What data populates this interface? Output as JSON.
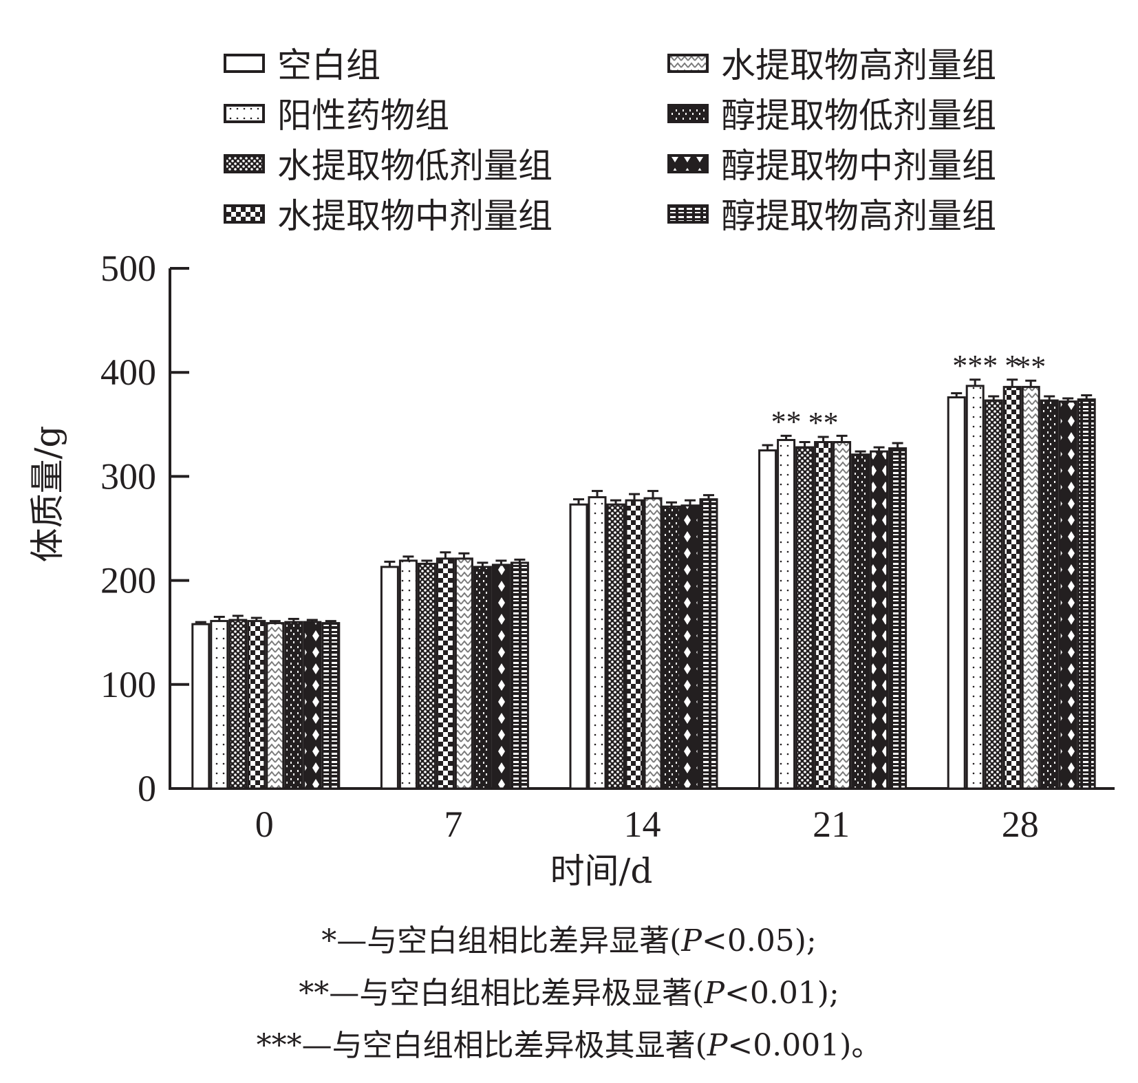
{
  "chart_data": {
    "type": "bar",
    "categories": [
      "0",
      "7",
      "14",
      "21",
      "28"
    ],
    "xlabel": "时间/d",
    "ylabel": "体质量/g",
    "ylim": [
      0,
      500
    ],
    "yticks": [
      "0",
      "100",
      "200",
      "300",
      "400",
      "500"
    ],
    "grid": false,
    "legend_position": "top",
    "series": [
      {
        "name": "空白组",
        "values": [
          158,
          213,
          273,
          325,
          376
        ],
        "errors": [
          2,
          5,
          5,
          5,
          4
        ]
      },
      {
        "name": "阳性药物组",
        "values": [
          161,
          219,
          280,
          335,
          387
        ],
        "errors": [
          4,
          4,
          6,
          4,
          6
        ]
      },
      {
        "name": "水提取物低剂量组",
        "values": [
          162,
          216,
          273,
          328,
          373
        ],
        "errors": [
          4,
          3,
          4,
          5,
          4
        ]
      },
      {
        "name": "水提取物中剂量组",
        "values": [
          161,
          221,
          277,
          333,
          386
        ],
        "errors": [
          3,
          6,
          6,
          5,
          7
        ]
      },
      {
        "name": "水提取物高剂量组",
        "values": [
          159,
          221,
          279,
          333,
          386
        ],
        "errors": [
          2,
          5,
          7,
          6,
          6
        ]
      },
      {
        "name": "醇提取物低剂量组",
        "values": [
          160,
          213,
          271,
          321,
          373
        ],
        "errors": [
          3,
          4,
          4,
          3,
          4
        ]
      },
      {
        "name": "醇提取物中剂量组",
        "values": [
          160,
          215,
          272,
          324,
          372
        ],
        "errors": [
          2,
          4,
          5,
          4,
          3
        ]
      },
      {
        "name": "醇提取物高剂量组",
        "values": [
          159,
          217,
          278,
          327,
          374
        ],
        "errors": [
          2,
          3,
          4,
          5,
          4
        ]
      }
    ],
    "significance": [
      {
        "category": "21",
        "series": "阳性药物组",
        "label": "**"
      },
      {
        "category": "21",
        "series": "水提取物中剂量组",
        "label": "**"
      },
      {
        "category": "28",
        "series": "阳性药物组",
        "label": "***"
      },
      {
        "category": "28",
        "series": "水提取物中剂量组",
        "label": "*"
      },
      {
        "category": "28",
        "series": "水提取物高剂量组",
        "label": "**"
      }
    ]
  },
  "notes": [
    {
      "stars": "*",
      "text": "—与空白组相比差异显著(",
      "p": "P",
      "value": "<0.05);"
    },
    {
      "stars": "**",
      "text": "—与空白组相比差异极显著(",
      "p": "P",
      "value": "<0.01);"
    },
    {
      "stars": "***",
      "text": "—与空白组相比差异极其显著(",
      "p": "P",
      "value": "<0.001)。"
    }
  ]
}
